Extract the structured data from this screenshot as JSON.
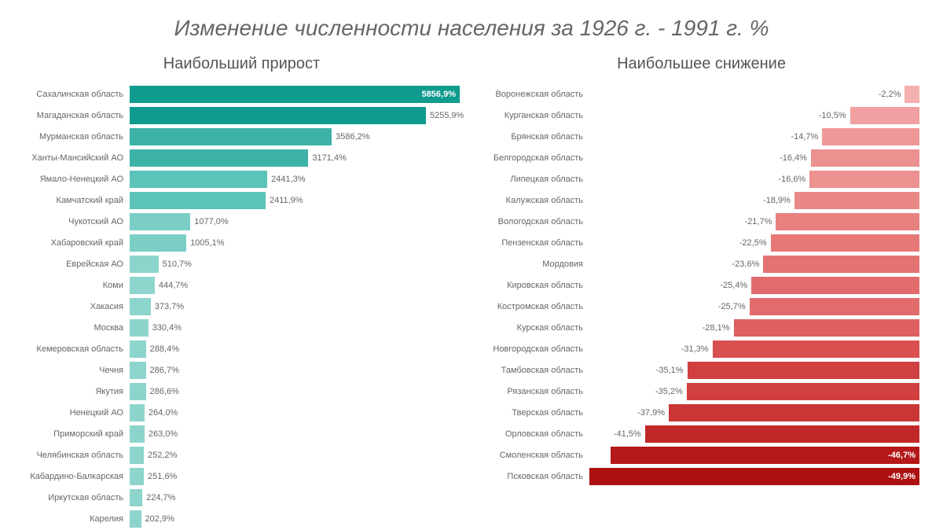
{
  "title": "Изменение численности населения за 1926 г. - 1991 г. %",
  "left_panel": {
    "title": "Наибольший прирост",
    "type": "bar",
    "max_value": 5856.9,
    "value_suffix": "%",
    "bars": [
      {
        "label": "Сахалинская область",
        "value": 5856.9,
        "display": "5856,9%",
        "color": "#0f9b8e",
        "value_inside": true
      },
      {
        "label": "Магаданская область",
        "value": 5255.9,
        "display": "5255,9%",
        "color": "#0f9b8e",
        "value_inside": false
      },
      {
        "label": "Мурманская область",
        "value": 3586.2,
        "display": "3586,2%",
        "color": "#3db3a8",
        "value_inside": false
      },
      {
        "label": "Ханты-Мансийский АО",
        "value": 3171.4,
        "display": "3171,4%",
        "color": "#3db3a8",
        "value_inside": false
      },
      {
        "label": "Ямало-Ненецкий АО",
        "value": 2441.3,
        "display": "2441,3%",
        "color": "#5cc3ba",
        "value_inside": false
      },
      {
        "label": "Камчатский край",
        "value": 2411.9,
        "display": "2411,9%",
        "color": "#5cc3ba",
        "value_inside": false
      },
      {
        "label": "Чукотский АО",
        "value": 1077.0,
        "display": "1077,0%",
        "color": "#7bcec6",
        "value_inside": false
      },
      {
        "label": "Хабаровский край",
        "value": 1005.1,
        "display": "1005,1%",
        "color": "#7bcec6",
        "value_inside": false
      },
      {
        "label": "Еврейская АО",
        "value": 510.7,
        "display": "510,7%",
        "color": "#8dd4cd",
        "value_inside": false
      },
      {
        "label": "Коми",
        "value": 444.7,
        "display": "444,7%",
        "color": "#8dd4cd",
        "value_inside": false
      },
      {
        "label": "Хакасия",
        "value": 373.7,
        "display": "373,7%",
        "color": "#8dd4cd",
        "value_inside": false
      },
      {
        "label": "Москва",
        "value": 330.4,
        "display": "330,4%",
        "color": "#8dd4cd",
        "value_inside": false
      },
      {
        "label": "Кемеровская область",
        "value": 288.4,
        "display": "288,4%",
        "color": "#8dd4cd",
        "value_inside": false
      },
      {
        "label": "Чечня",
        "value": 286.7,
        "display": "286,7%",
        "color": "#8dd4cd",
        "value_inside": false
      },
      {
        "label": "Якутия",
        "value": 286.6,
        "display": "286,6%",
        "color": "#8dd4cd",
        "value_inside": false
      },
      {
        "label": "Ненецкий АО",
        "value": 264.0,
        "display": "264,0%",
        "color": "#8dd4cd",
        "value_inside": false
      },
      {
        "label": "Приморский край",
        "value": 263.0,
        "display": "263,0%",
        "color": "#8dd4cd",
        "value_inside": false
      },
      {
        "label": "Челябинская область",
        "value": 252.2,
        "display": "252,2%",
        "color": "#8dd4cd",
        "value_inside": false
      },
      {
        "label": "Кабардино-Балкарская",
        "value": 251.6,
        "display": "251,6%",
        "color": "#8dd4cd",
        "value_inside": false
      },
      {
        "label": "Иркутская область",
        "value": 224.7,
        "display": "224,7%",
        "color": "#8dd4cd",
        "value_inside": false
      },
      {
        "label": "Карелия",
        "value": 202.9,
        "display": "202,9%",
        "color": "#8dd4cd",
        "value_inside": false
      }
    ]
  },
  "right_panel": {
    "title": "Наибольшее снижение",
    "type": "bar",
    "max_value": 49.9,
    "value_suffix": "%",
    "bars": [
      {
        "label": "Воронежская область",
        "value": 2.2,
        "display": "-2,2%",
        "color": "#f5b0b0",
        "value_inside": false
      },
      {
        "label": "Курганская область",
        "value": 10.5,
        "display": "-10,5%",
        "color": "#f0a0a0",
        "value_inside": false
      },
      {
        "label": "Брянская область",
        "value": 14.7,
        "display": "-14,7%",
        "color": "#ee9898",
        "value_inside": false
      },
      {
        "label": "Белгородская область",
        "value": 16.4,
        "display": "-16,4%",
        "color": "#ec9090",
        "value_inside": false
      },
      {
        "label": "Липецкая область",
        "value": 16.6,
        "display": "-16,6%",
        "color": "#ec9090",
        "value_inside": false
      },
      {
        "label": "Калужская область",
        "value": 18.9,
        "display": "-18,9%",
        "color": "#ea8888",
        "value_inside": false
      },
      {
        "label": "Вологодская область",
        "value": 21.7,
        "display": "-21,7%",
        "color": "#e88080",
        "value_inside": false
      },
      {
        "label": "Пензенская область",
        "value": 22.5,
        "display": "-22,5%",
        "color": "#e67878",
        "value_inside": false
      },
      {
        "label": "Мордовия",
        "value": 23.6,
        "display": "-23,6%",
        "color": "#e47474",
        "value_inside": false
      },
      {
        "label": "Кировская область",
        "value": 25.4,
        "display": "-25,4%",
        "color": "#e26c6c",
        "value_inside": false
      },
      {
        "label": "Костромская область",
        "value": 25.7,
        "display": "-25,7%",
        "color": "#e26c6c",
        "value_inside": false
      },
      {
        "label": "Курская область",
        "value": 28.1,
        "display": "-28,1%",
        "color": "#de6060",
        "value_inside": false
      },
      {
        "label": "Новгородская область",
        "value": 31.3,
        "display": "-31,3%",
        "color": "#d85050",
        "value_inside": false
      },
      {
        "label": "Тамбовская область",
        "value": 35.1,
        "display": "-35,1%",
        "color": "#d04040",
        "value_inside": false
      },
      {
        "label": "Рязанская область",
        "value": 35.2,
        "display": "-35,2%",
        "color": "#d04040",
        "value_inside": false
      },
      {
        "label": "Тверская область",
        "value": 37.9,
        "display": "-37,9%",
        "color": "#ca3636",
        "value_inside": false
      },
      {
        "label": "Орловская область",
        "value": 41.5,
        "display": "-41,5%",
        "color": "#c02828",
        "value_inside": false
      },
      {
        "label": "Смоленская область",
        "value": 46.7,
        "display": "-46,7%",
        "color": "#b41818",
        "value_inside": true
      },
      {
        "label": "Псковская область",
        "value": 49.9,
        "display": "-49,9%",
        "color": "#ac1010",
        "value_inside": true
      }
    ]
  }
}
